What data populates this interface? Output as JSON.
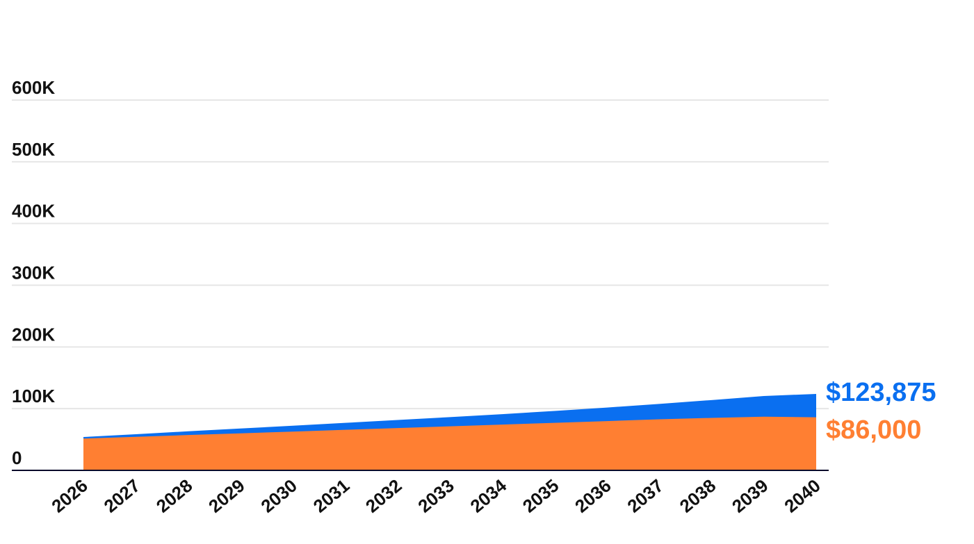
{
  "chart_data": {
    "type": "area",
    "x": [
      "2026",
      "2027",
      "2028",
      "2029",
      "2030",
      "2031",
      "2032",
      "2033",
      "2034",
      "2035",
      "2036",
      "2037",
      "2038",
      "2039",
      "2040"
    ],
    "ylim": [
      0,
      600000
    ],
    "yticks": [
      0,
      100000,
      200000,
      300000,
      400000,
      500000,
      600000
    ],
    "ytick_labels": [
      "0",
      "100K",
      "200K",
      "300K",
      "400K",
      "500K",
      "600K"
    ],
    "grid": true,
    "series": [
      {
        "key": "blue",
        "color": "#0a6ff0",
        "end_label": "$123,875",
        "values": [
          54000,
          58600,
          63300,
          67800,
          72300,
          76900,
          81600,
          86300,
          91100,
          96300,
          101800,
          107700,
          113900,
          120500,
          123875
        ]
      },
      {
        "key": "orange",
        "color": "#ff7f32",
        "end_label": "$86,000",
        "values": [
          51500,
          54300,
          57200,
          60000,
          62800,
          65700,
          68500,
          71300,
          74200,
          77000,
          79800,
          82700,
          85000,
          87000,
          86000
        ]
      }
    ]
  }
}
